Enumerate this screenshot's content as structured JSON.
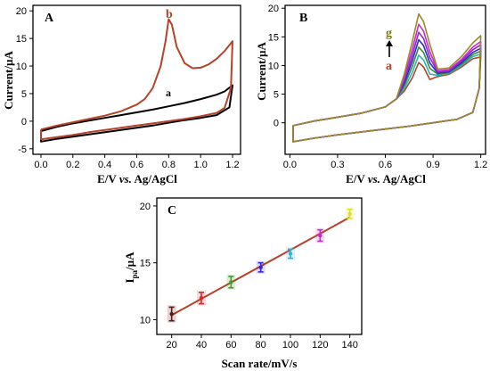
{
  "chart_data": [
    {
      "panel": "A",
      "type": "line",
      "xlabel_parts": [
        "E/V ",
        "vs.",
        " Ag/AgCl"
      ],
      "ylabel": "Current/µA",
      "xlim": [
        -0.05,
        1.25
      ],
      "ylim": [
        -6,
        21
      ],
      "xticks": [
        "0.0",
        "0.2",
        "0.4",
        "0.6",
        "0.8",
        "1.0",
        "1.2"
      ],
      "yticks": [
        "-5",
        "0",
        "5",
        "10",
        "15",
        "20"
      ],
      "curve_labels": [
        "a",
        "b"
      ],
      "colors": {
        "a": "#000000",
        "b": "#b5432a"
      },
      "series": [
        {
          "name": "a",
          "forward": [
            [
              0.0,
              -1.8
            ],
            [
              0.1,
              -1.0
            ],
            [
              0.2,
              -0.4
            ],
            [
              0.3,
              0.1
            ],
            [
              0.4,
              0.6
            ],
            [
              0.5,
              1.1
            ],
            [
              0.6,
              1.6
            ],
            [
              0.7,
              2.1
            ],
            [
              0.8,
              2.7
            ],
            [
              0.9,
              3.3
            ],
            [
              1.0,
              4.0
            ],
            [
              1.1,
              4.8
            ],
            [
              1.15,
              5.4
            ],
            [
              1.2,
              6.5
            ]
          ],
          "reverse": [
            [
              1.2,
              6.5
            ],
            [
              1.18,
              2.5
            ],
            [
              1.1,
              1.1
            ],
            [
              1.0,
              0.6
            ],
            [
              0.9,
              0.2
            ],
            [
              0.8,
              -0.3
            ],
            [
              0.7,
              -0.8
            ],
            [
              0.6,
              -1.2
            ],
            [
              0.5,
              -1.6
            ],
            [
              0.4,
              -2.0
            ],
            [
              0.3,
              -2.4
            ],
            [
              0.2,
              -2.8
            ],
            [
              0.1,
              -3.2
            ],
            [
              0.0,
              -3.7
            ],
            [
              0.0,
              -1.8
            ]
          ]
        },
        {
          "name": "b",
          "forward": [
            [
              0.0,
              -1.5
            ],
            [
              0.1,
              -0.8
            ],
            [
              0.2,
              -0.2
            ],
            [
              0.3,
              0.4
            ],
            [
              0.4,
              1.0
            ],
            [
              0.5,
              1.8
            ],
            [
              0.6,
              3.0
            ],
            [
              0.65,
              4.0
            ],
            [
              0.7,
              6.0
            ],
            [
              0.75,
              10.0
            ],
            [
              0.78,
              14.5
            ],
            [
              0.8,
              18.5
            ],
            [
              0.82,
              17.5
            ],
            [
              0.85,
              13.5
            ],
            [
              0.9,
              10.5
            ],
            [
              0.95,
              9.6
            ],
            [
              1.0,
              9.7
            ],
            [
              1.05,
              10.3
            ],
            [
              1.1,
              11.3
            ],
            [
              1.15,
              12.7
            ],
            [
              1.2,
              14.5
            ]
          ],
          "reverse": [
            [
              1.2,
              14.5
            ],
            [
              1.19,
              6.0
            ],
            [
              1.15,
              2.4
            ],
            [
              1.1,
              1.5
            ],
            [
              1.0,
              0.9
            ],
            [
              0.9,
              0.4
            ],
            [
              0.8,
              0.0
            ],
            [
              0.7,
              -0.4
            ],
            [
              0.6,
              -0.8
            ],
            [
              0.5,
              -1.2
            ],
            [
              0.4,
              -1.6
            ],
            [
              0.3,
              -2.0
            ],
            [
              0.2,
              -2.5
            ],
            [
              0.1,
              -2.9
            ],
            [
              0.0,
              -3.3
            ],
            [
              0.0,
              -1.5
            ]
          ]
        }
      ]
    },
    {
      "panel": "B",
      "type": "line",
      "xlabel_parts": [
        "E/V ",
        "vs.",
        " Ag/AgCl"
      ],
      "ylabel": "Current/µA",
      "xlim": [
        -0.03,
        1.23
      ],
      "ylim": [
        -5.5,
        20.5
      ],
      "xticks": [
        "0.0",
        "0.3",
        "0.6",
        "0.9",
        "1.2"
      ],
      "yticks": [
        "0",
        "5",
        "10",
        "15",
        "20"
      ],
      "curve_labels": [
        "g",
        "a"
      ],
      "label_colors": {
        "g": "#7a7a1a",
        "a": "#b5432a"
      },
      "series": [
        {
          "name": "a",
          "color": "#b5432a",
          "peak": 10.5,
          "end": 11.5
        },
        {
          "name": "b",
          "color": "#2ab5b5",
          "peak": 11.8,
          "end": 12.0
        },
        {
          "name": "c",
          "color": "#3a8a3a",
          "peak": 13.2,
          "end": 12.5
        },
        {
          "name": "d",
          "color": "#2a2acc",
          "peak": 14.5,
          "end": 13.0
        },
        {
          "name": "e",
          "color": "#8a2acc",
          "peak": 15.8,
          "end": 13.6
        },
        {
          "name": "f",
          "color": "#cc2acc",
          "peak": 17.2,
          "end": 14.2
        },
        {
          "name": "g",
          "color": "#9a8a2a",
          "peak": 19.0,
          "end": 15.2
        }
      ]
    },
    {
      "panel": "C",
      "type": "scatter",
      "xlabel": "Scan rate/mV/s",
      "ylabel_main": "I",
      "ylabel_sub": "pa",
      "ylabel_unit": "/µA",
      "xlim": [
        10,
        148
      ],
      "ylim": [
        8.7,
        20.7
      ],
      "xticks": [
        "20",
        "40",
        "60",
        "80",
        "100",
        "120",
        "140"
      ],
      "yticks": [
        "10",
        "15",
        "20"
      ],
      "points": [
        {
          "x": 20,
          "y": 10.5,
          "err": 0.6,
          "color": "#5a1a1a"
        },
        {
          "x": 40,
          "y": 11.9,
          "err": 0.5,
          "color": "#d42a2a"
        },
        {
          "x": 60,
          "y": 13.3,
          "err": 0.5,
          "color": "#4a9a2a"
        },
        {
          "x": 80,
          "y": 14.6,
          "err": 0.4,
          "color": "#3a2acc"
        },
        {
          "x": 100,
          "y": 15.8,
          "err": 0.4,
          "color": "#2ab5e0"
        },
        {
          "x": 120,
          "y": 17.4,
          "err": 0.5,
          "color": "#cc2acc"
        },
        {
          "x": 140,
          "y": 19.3,
          "err": 0.4,
          "color": "#e0e02a"
        }
      ],
      "fit": {
        "x0": 20,
        "y0": 10.4,
        "x1": 140,
        "y1": 19.0,
        "color": "#b5432a"
      }
    }
  ]
}
